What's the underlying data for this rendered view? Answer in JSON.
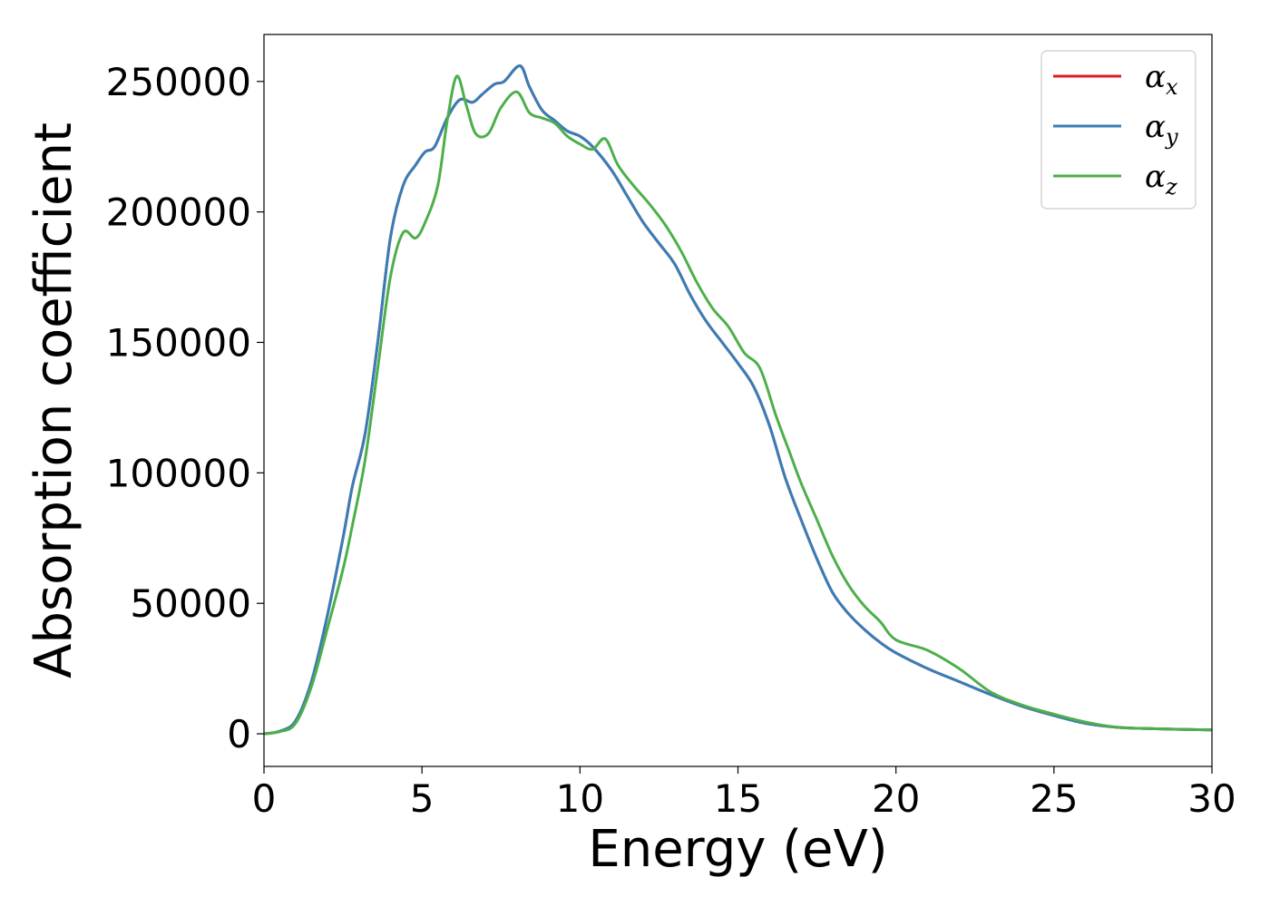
{
  "chart_data": {
    "type": "line",
    "title": "",
    "xlabel": "Energy (eV)",
    "ylabel": "Absorption coefficient",
    "xlim": [
      0,
      30
    ],
    "ylim": [
      -12500,
      268000
    ],
    "xticks": [
      0,
      5,
      10,
      15,
      20,
      25,
      30
    ],
    "yticks": [
      0,
      50000,
      100000,
      150000,
      200000,
      250000
    ],
    "grid": false,
    "legend_position": "top-right",
    "series": [
      {
        "name": "α_x",
        "symbol": "α",
        "subscript": "x",
        "color": "#e41a1c",
        "x": [
          0,
          0.5,
          1,
          1.5,
          2,
          2.5,
          2.8,
          3.2,
          3.6,
          4,
          4.4,
          4.8,
          5.1,
          5.4,
          5.8,
          6.2,
          6.6,
          6.9,
          7.3,
          7.6,
          8.1,
          8.4,
          8.8,
          9.2,
          9.6,
          10,
          10.4,
          11,
          11.5,
          12,
          12.5,
          13,
          13.5,
          14,
          14.5,
          15,
          15.5,
          16,
          16.5,
          17,
          17.5,
          18,
          18.5,
          19,
          19.5,
          20,
          21,
          22,
          23,
          24,
          25,
          26,
          27,
          28,
          29,
          30
        ],
        "values": [
          0,
          1000,
          5000,
          20000,
          45000,
          75000,
          95000,
          115000,
          150000,
          190000,
          210000,
          218000,
          223000,
          225000,
          236000,
          243000,
          242000,
          245000,
          249000,
          250000,
          256000,
          248000,
          239000,
          235000,
          231000,
          229000,
          225000,
          216000,
          206000,
          196000,
          188000,
          180000,
          168000,
          158000,
          150000,
          142000,
          133000,
          118000,
          98000,
          82000,
          67000,
          54000,
          46000,
          40000,
          35000,
          31000,
          25000,
          20000,
          15000,
          10500,
          7000,
          4000,
          2500,
          2000,
          1700,
          1500
        ]
      },
      {
        "name": "α_y",
        "symbol": "α",
        "subscript": "y",
        "color": "#377eb8",
        "x": [
          0,
          0.5,
          1,
          1.5,
          2,
          2.5,
          2.8,
          3.2,
          3.6,
          4,
          4.4,
          4.8,
          5.1,
          5.4,
          5.8,
          6.2,
          6.6,
          6.9,
          7.3,
          7.6,
          8.1,
          8.4,
          8.8,
          9.2,
          9.6,
          10,
          10.4,
          11,
          11.5,
          12,
          12.5,
          13,
          13.5,
          14,
          14.5,
          15,
          15.5,
          16,
          16.5,
          17,
          17.5,
          18,
          18.5,
          19,
          19.5,
          20,
          21,
          22,
          23,
          24,
          25,
          26,
          27,
          28,
          29,
          30
        ],
        "values": [
          0,
          1000,
          5000,
          20000,
          45000,
          75000,
          95000,
          115000,
          150000,
          190000,
          210000,
          218000,
          223000,
          225000,
          236000,
          243000,
          242000,
          245000,
          249000,
          250000,
          256000,
          248000,
          239000,
          235000,
          231000,
          229000,
          225000,
          216000,
          206000,
          196000,
          188000,
          180000,
          168000,
          158000,
          150000,
          142000,
          133000,
          118000,
          98000,
          82000,
          67000,
          54000,
          46000,
          40000,
          35000,
          31000,
          25000,
          20000,
          15000,
          10500,
          7000,
          4000,
          2500,
          2000,
          1700,
          1500
        ]
      },
      {
        "name": "α_z",
        "symbol": "α",
        "subscript": "z",
        "color": "#4daf4a",
        "x": [
          0,
          0.5,
          1,
          1.5,
          2,
          2.5,
          2.8,
          3.2,
          3.6,
          4,
          4.4,
          4.8,
          5.1,
          5.5,
          5.8,
          6.1,
          6.4,
          6.7,
          7.1,
          7.5,
          8,
          8.4,
          8.8,
          9.2,
          9.6,
          10,
          10.4,
          10.8,
          11.2,
          11.7,
          12.2,
          12.7,
          13.2,
          13.7,
          14.2,
          14.7,
          15.2,
          15.7,
          16.2,
          16.6,
          17,
          17.5,
          18,
          18.5,
          19,
          19.5,
          20,
          21,
          22,
          23,
          24,
          25,
          26,
          27,
          28,
          29,
          30
        ],
        "values": [
          0,
          800,
          4000,
          18000,
          40000,
          63000,
          80000,
          105000,
          140000,
          175000,
          192000,
          190000,
          196000,
          210000,
          235000,
          252000,
          241000,
          230000,
          230000,
          240000,
          246000,
          238000,
          236000,
          234000,
          229000,
          226000,
          224000,
          228000,
          218000,
          210000,
          203000,
          195000,
          185000,
          173000,
          163000,
          156000,
          146000,
          140000,
          122000,
          109000,
          96000,
          82000,
          68000,
          57000,
          49000,
          43000,
          36000,
          32000,
          25000,
          16000,
          11000,
          7500,
          4500,
          2500,
          2000,
          1700,
          1500
        ]
      }
    ]
  }
}
